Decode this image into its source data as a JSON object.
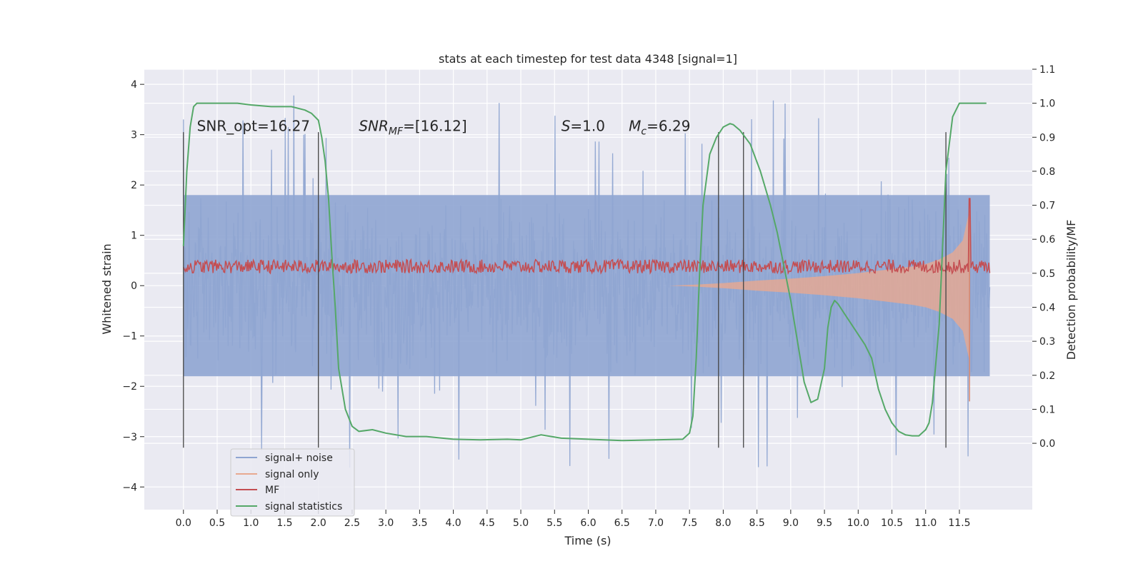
{
  "chart_data": {
    "type": "line",
    "title": "stats at each timestep for test data 4348 [signal=1]",
    "xlabel": "Time (s)",
    "ylabel_left": "Whitened strain",
    "ylabel_right": "Detection probability/MF",
    "xlim": [
      -0.58,
      12.58
    ],
    "ylim_left": [
      -4.45,
      4.3
    ],
    "ylim_right": [
      -0.195,
      1.1
    ],
    "xticks": [
      0.0,
      0.5,
      1.0,
      1.5,
      2.0,
      2.5,
      3.0,
      3.5,
      4.0,
      4.5,
      5.0,
      5.5,
      6.0,
      6.5,
      7.0,
      7.5,
      8.0,
      8.5,
      9.0,
      9.5,
      10.0,
      10.5,
      11.0,
      11.5
    ],
    "xtick_labels": [
      "0.0",
      "0.5",
      "1.0",
      "1.5",
      "2.0",
      "2.5",
      "3.0",
      "3.5",
      "4.0",
      "4.5",
      "5.0",
      "5.5",
      "6.0",
      "6.5",
      "7.0",
      "7.5",
      "8.0",
      "8.5",
      "9.0",
      "9.5",
      "10.0",
      "10.5",
      "11.0",
      "11.5"
    ],
    "yticks_left": [
      -4,
      -3,
      -2,
      -1,
      0,
      1,
      2,
      3,
      4
    ],
    "ytick_labels_left": [
      "−4",
      "−3",
      "−2",
      "−1",
      "0",
      "1",
      "2",
      "3",
      "4"
    ],
    "yticks_right": [
      0.0,
      0.1,
      0.2,
      0.3,
      0.4,
      0.5,
      0.6,
      0.7,
      0.8,
      0.9,
      1.0,
      1.1
    ],
    "ytick_labels_right": [
      "0.0",
      "0.1",
      "0.2",
      "0.3",
      "0.4",
      "0.5",
      "0.6",
      "0.7",
      "0.8",
      "0.9",
      "1.0",
      "1.1"
    ],
    "grid": true,
    "legend": {
      "placement": "lower-left",
      "entries": [
        {
          "label": "signal+ noise",
          "color": "#8fa5d1"
        },
        {
          "label": "signal only",
          "color": "#e8a990"
        },
        {
          "label": "MF",
          "color": "#c44e52"
        },
        {
          "label": "signal statistics",
          "color": "#55a868"
        }
      ]
    },
    "annotations": [
      {
        "text": "SNR_opt=16.27",
        "x": 0.2,
        "y": 3.07
      },
      {
        "text": "SNR_MF=[16.12]",
        "x": 2.6,
        "y": 3.07
      },
      {
        "text": "S=1.0",
        "x": 5.6,
        "y": 3.07
      },
      {
        "text": "M_c=6.29",
        "x": 6.6,
        "y": 3.07
      }
    ],
    "vertical_lines": {
      "x": [
        0.0,
        2.0,
        7.93,
        8.3,
        11.3
      ],
      "ymin": -3.22,
      "ymax": 3.05
    },
    "series": [
      {
        "name": "signal+ noise",
        "axis": "left",
        "kind": "noise",
        "x_range": [
          0.0,
          11.95
        ],
        "envelope": {
          "typical": 1.8,
          "peak_max": 3.9,
          "peak_min": -4.1
        }
      },
      {
        "name": "signal only",
        "axis": "left",
        "kind": "chirp",
        "x": [
          7.2,
          7.6,
          8.0,
          8.5,
          9.0,
          9.5,
          10.0,
          10.5,
          10.8,
          11.0,
          11.2,
          11.4,
          11.55,
          11.65
        ],
        "amplitude": [
          0.0,
          0.02,
          0.05,
          0.1,
          0.14,
          0.19,
          0.25,
          0.33,
          0.38,
          0.43,
          0.52,
          0.66,
          0.9,
          1.5
        ]
      },
      {
        "name": "MF",
        "axis": "right",
        "kind": "noise-band",
        "x_range": [
          0.0,
          11.95
        ],
        "band": [
          0.5,
          0.54
        ],
        "spike": {
          "x": 11.65,
          "y": 0.72
        }
      },
      {
        "name": "signal statistics",
        "axis": "right",
        "x": [
          0.0,
          0.05,
          0.1,
          0.15,
          0.2,
          0.3,
          0.5,
          0.8,
          1.0,
          1.3,
          1.6,
          1.8,
          1.9,
          2.0,
          2.05,
          2.1,
          2.15,
          2.2,
          2.25,
          2.3,
          2.4,
          2.5,
          2.6,
          2.8,
          3.0,
          3.3,
          3.6,
          4.0,
          4.4,
          4.8,
          5.0,
          5.3,
          5.6,
          6.0,
          6.5,
          7.0,
          7.4,
          7.5,
          7.55,
          7.6,
          7.65,
          7.7,
          7.8,
          7.9,
          8.0,
          8.1,
          8.15,
          8.25,
          8.4,
          8.55,
          8.7,
          8.8,
          8.9,
          9.0,
          9.1,
          9.2,
          9.3,
          9.4,
          9.5,
          9.55,
          9.6,
          9.65,
          9.7,
          9.8,
          9.9,
          10.0,
          10.1,
          10.2,
          10.3,
          10.4,
          10.5,
          10.6,
          10.7,
          10.8,
          10.9,
          11.0,
          11.05,
          11.1,
          11.2,
          11.3,
          11.4,
          11.5,
          11.6,
          11.8,
          11.9
        ],
        "y": [
          0.58,
          0.8,
          0.93,
          0.99,
          1.0,
          1.0,
          1.0,
          1.0,
          0.995,
          0.99,
          0.99,
          0.98,
          0.97,
          0.95,
          0.9,
          0.83,
          0.72,
          0.55,
          0.4,
          0.22,
          0.1,
          0.05,
          0.035,
          0.04,
          0.03,
          0.02,
          0.02,
          0.012,
          0.01,
          0.012,
          0.01,
          0.025,
          0.015,
          0.012,
          0.008,
          0.01,
          0.012,
          0.03,
          0.08,
          0.25,
          0.5,
          0.7,
          0.85,
          0.9,
          0.93,
          0.94,
          0.937,
          0.92,
          0.88,
          0.8,
          0.7,
          0.62,
          0.52,
          0.42,
          0.3,
          0.18,
          0.12,
          0.13,
          0.22,
          0.34,
          0.4,
          0.42,
          0.41,
          0.38,
          0.35,
          0.32,
          0.29,
          0.25,
          0.16,
          0.1,
          0.06,
          0.035,
          0.025,
          0.022,
          0.022,
          0.04,
          0.06,
          0.12,
          0.35,
          0.8,
          0.96,
          1.0,
          1.0,
          1.0,
          1.0
        ]
      }
    ]
  }
}
